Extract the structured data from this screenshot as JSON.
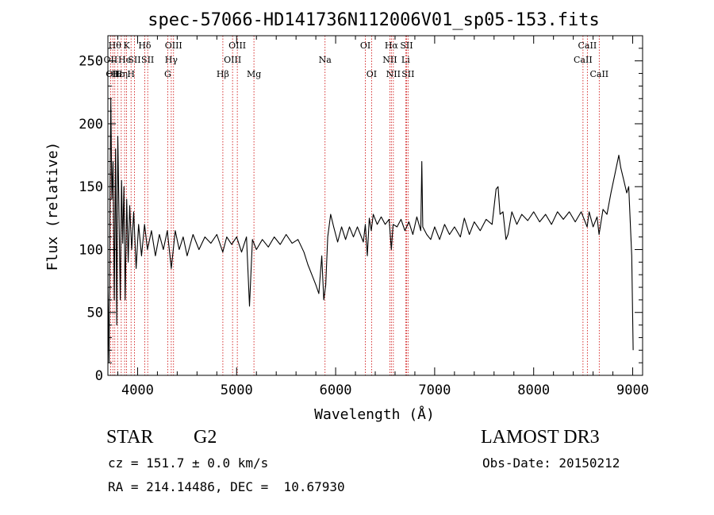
{
  "chart_data": {
    "type": "line",
    "title": "spec-57066-HD141736N112006V01_sp05-153.fits",
    "xlabel": "Wavelength (Å)",
    "ylabel": "Flux (relative)",
    "xlim": [
      3700,
      9100
    ],
    "ylim": [
      0,
      270
    ],
    "xticks": [
      4000,
      5000,
      6000,
      7000,
      8000,
      9000
    ],
    "xtick_labels": [
      "4000",
      "5000",
      "6000",
      "7000",
      "8000",
      "9000"
    ],
    "yticks": [
      0,
      50,
      100,
      150,
      200,
      250
    ],
    "ytick_labels": [
      "0",
      "50",
      "100",
      "150",
      "200",
      "250"
    ],
    "series": [
      {
        "name": "flux",
        "color": "#000000",
        "points": [
          [
            3700,
            70
          ],
          [
            3712,
            10
          ],
          [
            3722,
            150
          ],
          [
            3730,
            220
          ],
          [
            3740,
            140
          ],
          [
            3752,
            170
          ],
          [
            3765,
            60
          ],
          [
            3778,
            180
          ],
          [
            3790,
            40
          ],
          [
            3800,
            190
          ],
          [
            3812,
            130
          ],
          [
            3825,
            60
          ],
          [
            3838,
            155
          ],
          [
            3850,
            105
          ],
          [
            3862,
            150
          ],
          [
            3875,
            60
          ],
          [
            3890,
            140
          ],
          [
            3905,
            90
          ],
          [
            3920,
            135
          ],
          [
            3940,
            100
          ],
          [
            3960,
            130
          ],
          [
            3985,
            85
          ],
          [
            4010,
            120
          ],
          [
            4040,
            95
          ],
          [
            4070,
            120
          ],
          [
            4100,
            100
          ],
          [
            4140,
            115
          ],
          [
            4180,
            95
          ],
          [
            4220,
            112
          ],
          [
            4260,
            100
          ],
          [
            4300,
            115
          ],
          [
            4340,
            85
          ],
          [
            4380,
            115
          ],
          [
            4420,
            100
          ],
          [
            4460,
            110
          ],
          [
            4500,
            95
          ],
          [
            4560,
            112
          ],
          [
            4620,
            100
          ],
          [
            4680,
            110
          ],
          [
            4740,
            105
          ],
          [
            4800,
            112
          ],
          [
            4860,
            98
          ],
          [
            4900,
            110
          ],
          [
            4950,
            104
          ],
          [
            5000,
            110
          ],
          [
            5050,
            98
          ],
          [
            5100,
            110
          ],
          [
            5130,
            55
          ],
          [
            5160,
            108
          ],
          [
            5200,
            100
          ],
          [
            5260,
            108
          ],
          [
            5320,
            102
          ],
          [
            5380,
            110
          ],
          [
            5440,
            104
          ],
          [
            5500,
            112
          ],
          [
            5560,
            105
          ],
          [
            5620,
            108
          ],
          [
            5680,
            98
          ],
          [
            5720,
            88
          ],
          [
            5760,
            80
          ],
          [
            5800,
            72
          ],
          [
            5830,
            65
          ],
          [
            5860,
            95
          ],
          [
            5880,
            60
          ],
          [
            5900,
            72
          ],
          [
            5920,
            110
          ],
          [
            5950,
            128
          ],
          [
            5980,
            118
          ],
          [
            6020,
            106
          ],
          [
            6060,
            118
          ],
          [
            6100,
            108
          ],
          [
            6140,
            118
          ],
          [
            6180,
            110
          ],
          [
            6220,
            118
          ],
          [
            6250,
            112
          ],
          [
            6280,
            106
          ],
          [
            6300,
            120
          ],
          [
            6320,
            95
          ],
          [
            6340,
            125
          ],
          [
            6360,
            115
          ],
          [
            6380,
            128
          ],
          [
            6420,
            120
          ],
          [
            6460,
            126
          ],
          [
            6500,
            120
          ],
          [
            6540,
            124
          ],
          [
            6563,
            100
          ],
          [
            6580,
            120
          ],
          [
            6620,
            118
          ],
          [
            6660,
            124
          ],
          [
            6700,
            115
          ],
          [
            6740,
            122
          ],
          [
            6780,
            112
          ],
          [
            6820,
            126
          ],
          [
            6860,
            115
          ],
          [
            6870,
            170
          ],
          [
            6880,
            118
          ],
          [
            6920,
            112
          ],
          [
            6960,
            108
          ],
          [
            7000,
            118
          ],
          [
            7050,
            108
          ],
          [
            7100,
            120
          ],
          [
            7150,
            112
          ],
          [
            7200,
            118
          ],
          [
            7260,
            110
          ],
          [
            7300,
            125
          ],
          [
            7350,
            112
          ],
          [
            7400,
            122
          ],
          [
            7460,
            115
          ],
          [
            7520,
            124
          ],
          [
            7580,
            120
          ],
          [
            7620,
            148
          ],
          [
            7640,
            150
          ],
          [
            7660,
            128
          ],
          [
            7690,
            130
          ],
          [
            7720,
            108
          ],
          [
            7740,
            112
          ],
          [
            7780,
            130
          ],
          [
            7830,
            120
          ],
          [
            7880,
            128
          ],
          [
            7940,
            123
          ],
          [
            8000,
            130
          ],
          [
            8060,
            122
          ],
          [
            8120,
            128
          ],
          [
            8180,
            120
          ],
          [
            8240,
            130
          ],
          [
            8300,
            124
          ],
          [
            8360,
            130
          ],
          [
            8420,
            122
          ],
          [
            8480,
            130
          ],
          [
            8540,
            118
          ],
          [
            8560,
            130
          ],
          [
            8600,
            118
          ],
          [
            8640,
            126
          ],
          [
            8660,
            112
          ],
          [
            8700,
            132
          ],
          [
            8740,
            128
          ],
          [
            8780,
            145
          ],
          [
            8820,
            160
          ],
          [
            8860,
            175
          ],
          [
            8880,
            165
          ],
          [
            8910,
            155
          ],
          [
            8940,
            145
          ],
          [
            8960,
            150
          ],
          [
            8990,
            95
          ],
          [
            9005,
            20
          ]
        ]
      }
    ],
    "lines": [
      {
        "x": 3727,
        "labels": [
          "OII"
        ],
        "row": 1
      },
      {
        "x": 3750,
        "labels": [
          "OII"
        ],
        "row": 2
      },
      {
        "x": 3770,
        "labels": [
          "Hθ"
        ],
        "row": 0
      },
      {
        "x": 3798,
        "labels": [
          "Hε"
        ],
        "row": 2
      },
      {
        "x": 3835,
        "labels": [
          "Hη"
        ],
        "row": 2
      },
      {
        "x": 3869,
        "labels": [
          "He"
        ],
        "row": 1
      },
      {
        "x": 3889,
        "labels": [
          "K"
        ],
        "row": 0
      },
      {
        "x": 3934,
        "labels": [
          "H"
        ],
        "row": 2
      },
      {
        "x": 3968,
        "labels": [
          "SII"
        ],
        "row": 1
      },
      {
        "x": 4072,
        "labels": [
          "Hδ"
        ],
        "row": 0
      },
      {
        "x": 4102,
        "labels": [
          "SII"
        ],
        "row": 1
      },
      {
        "x": 4304,
        "labels": [
          "G"
        ],
        "row": 2
      },
      {
        "x": 4340,
        "labels": [
          "Hγ"
        ],
        "row": 1
      },
      {
        "x": 4363,
        "labels": [
          "OIII"
        ],
        "row": 0
      },
      {
        "x": 4861,
        "labels": [
          "Hβ"
        ],
        "row": 2
      },
      {
        "x": 4959,
        "labels": [
          "OIII"
        ],
        "row": 1
      },
      {
        "x": 5007,
        "labels": [
          "OIII"
        ],
        "row": 0
      },
      {
        "x": 5175,
        "labels": [
          "Mg"
        ],
        "row": 2
      },
      {
        "x": 5893,
        "labels": [
          "Na"
        ],
        "row": 1
      },
      {
        "x": 6300,
        "labels": [
          "OI"
        ],
        "row": 0
      },
      {
        "x": 6363,
        "labels": [
          "OI"
        ],
        "row": 2
      },
      {
        "x": 6548,
        "labels": [
          "NII"
        ],
        "row": 1
      },
      {
        "x": 6563,
        "labels": [
          "Hα"
        ],
        "row": 0
      },
      {
        "x": 6583,
        "labels": [
          "NII"
        ],
        "row": 2
      },
      {
        "x": 6707,
        "labels": [
          "Li"
        ],
        "row": 1
      },
      {
        "x": 6716,
        "labels": [
          "SII"
        ],
        "row": 0
      },
      {
        "x": 6731,
        "labels": [
          "SII"
        ],
        "row": 2
      },
      {
        "x": 8498,
        "labels": [
          "CaII"
        ],
        "row": 1
      },
      {
        "x": 8542,
        "labels": [
          "CaII"
        ],
        "row": 0
      },
      {
        "x": 8662,
        "labels": [
          "CaII"
        ],
        "row": 2
      }
    ]
  },
  "info": {
    "object_class": "STAR",
    "subclass": "G2",
    "survey": "LAMOST DR3",
    "cz": "cz = 151.7 ± 0.0 km/s",
    "obs_date": "Obs-Date: 20150212",
    "coords": "RA = 214.14486, DEC =  10.67930"
  }
}
